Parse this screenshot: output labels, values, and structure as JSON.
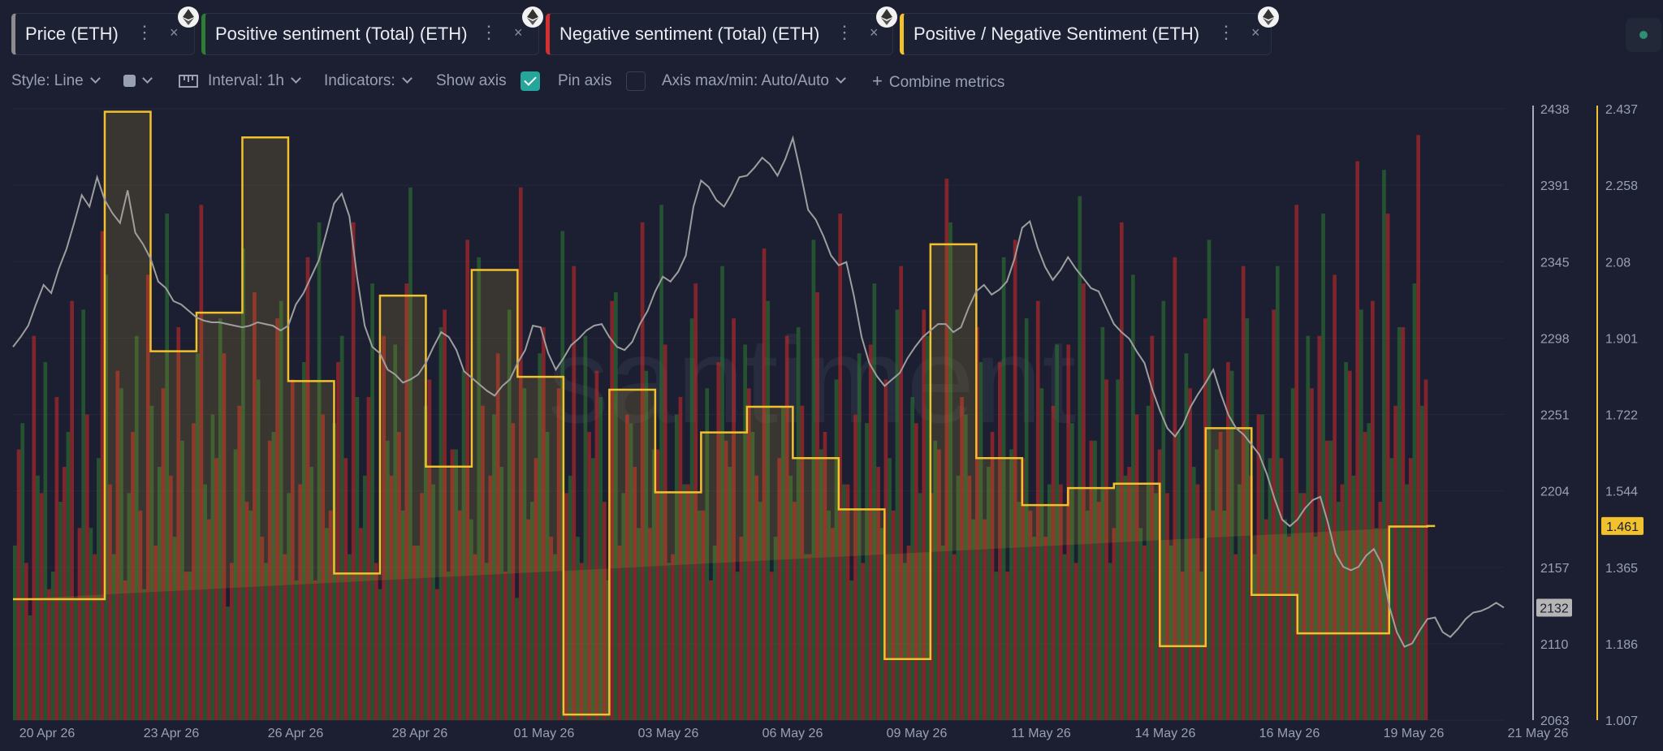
{
  "tabs": [
    {
      "label": "Price (ETH)",
      "color": "#8c8c8c"
    },
    {
      "label": "Positive sentiment (Total) (ETH)",
      "color": "#2e7d32"
    },
    {
      "label": "Negative sentiment (Total) (ETH)",
      "color": "#d32f2f"
    },
    {
      "label": "Positive / Negative Sentiment (ETH)",
      "color": "#f2c12e"
    }
  ],
  "toolbar": {
    "style": "Style: Line",
    "interval": "Interval: 1h",
    "indicators": "Indicators:",
    "show_axis": "Show axis",
    "pin_axis": "Pin axis",
    "axis_maxmin": "Axis max/min: Auto/Auto",
    "combine": "Combine metrics"
  },
  "watermark": "santiment",
  "chart_data": {
    "type": "line",
    "x_labels": [
      "20 Apr 26",
      "23 Apr 26",
      "26 Apr 26",
      "28 Apr 26",
      "01 May 26",
      "03 May 26",
      "06 May 26",
      "09 May 26",
      "11 May 26",
      "14 May 26",
      "16 May 26",
      "19 May 26",
      "21 May 26"
    ],
    "y_left_ticks": [
      "2438",
      "2391",
      "2345",
      "2298",
      "2251",
      "2204",
      "2157",
      "2110",
      "2063"
    ],
    "y_right_ticks": [
      "2.437",
      "2.258",
      "2.08",
      "1.901",
      "1.722",
      "1.544",
      "1.365",
      "1.186",
      "1.007"
    ],
    "price_current": "2132",
    "ratio_current": "1.461",
    "ylim_price": [
      2063,
      2438
    ],
    "ylim_ratio": [
      1.007,
      2.437
    ],
    "grid": true,
    "series": [
      {
        "name": "Price (ETH)",
        "color": "#9e9e9e",
        "values": [
          2292,
          2298,
          2305,
          2318,
          2330,
          2325,
          2340,
          2352,
          2368,
          2385,
          2378,
          2396,
          2382,
          2374,
          2368,
          2388,
          2362,
          2355,
          2346,
          2332,
          2328,
          2320,
          2318,
          2314,
          2310,
          2308,
          2307,
          2307,
          2306,
          2305,
          2304,
          2305,
          2307,
          2306,
          2305,
          2302,
          2305,
          2318,
          2325,
          2335,
          2345,
          2362,
          2380,
          2386,
          2372,
          2335,
          2305,
          2292,
          2288,
          2278,
          2275,
          2270,
          2272,
          2275,
          2282,
          2292,
          2301,
          2298,
          2290,
          2277,
          2273,
          2269,
          2265,
          2262,
          2268,
          2272,
          2282,
          2290,
          2305,
          2304,
          2288,
          2278,
          2285,
          2293,
          2297,
          2302,
          2305,
          2306,
          2298,
          2292,
          2290,
          2295,
          2306,
          2314,
          2326,
          2335,
          2332,
          2338,
          2348,
          2378,
          2394,
          2390,
          2382,
          2378,
          2386,
          2396,
          2397,
          2402,
          2408,
          2404,
          2397,
          2407,
          2420,
          2399,
          2376,
          2370,
          2360,
          2348,
          2342,
          2344,
          2323,
          2298,
          2282,
          2274,
          2268,
          2272,
          2276,
          2285,
          2292,
          2298,
          2302,
          2306,
          2306,
          2301,
          2304,
          2316,
          2326,
          2330,
          2324,
          2327,
          2332,
          2346,
          2365,
          2369,
          2353,
          2341,
          2333,
          2339,
          2347,
          2340,
          2334,
          2328,
          2326,
          2316,
          2306,
          2301,
          2297,
          2289,
          2282,
          2266,
          2253,
          2242,
          2237,
          2244,
          2255,
          2263,
          2270,
          2278,
          2263,
          2250,
          2242,
          2238,
          2232,
          2226,
          2214,
          2199,
          2186,
          2182,
          2186,
          2193,
          2198,
          2200,
          2184,
          2165,
          2157,
          2155,
          2157,
          2164,
          2168,
          2159,
          2133,
          2117,
          2108,
          2110,
          2118,
          2125,
          2126,
          2117,
          2114,
          2119,
          2125,
          2129,
          2130,
          2132,
          2135,
          2132
        ]
      },
      {
        "name": "Positive / Negative Sentiment (ETH)",
        "color": "#f2c12e",
        "values": [
          1.29,
          1.29,
          1.29,
          1.29,
          1.29,
          1.29,
          1.29,
          1.29,
          1.29,
          1.29,
          1.29,
          1.29,
          2.43,
          2.43,
          2.43,
          2.43,
          2.43,
          2.43,
          1.87,
          1.87,
          1.87,
          1.87,
          1.87,
          1.87,
          1.96,
          1.96,
          1.96,
          1.96,
          1.96,
          1.96,
          2.37,
          2.37,
          2.37,
          2.37,
          2.37,
          2.37,
          1.8,
          1.8,
          1.8,
          1.8,
          1.8,
          1.8,
          1.35,
          1.35,
          1.35,
          1.35,
          1.35,
          1.35,
          2.0,
          2.0,
          2.0,
          2.0,
          2.0,
          2.0,
          1.6,
          1.6,
          1.6,
          1.6,
          1.6,
          1.6,
          2.06,
          2.06,
          2.06,
          2.06,
          2.06,
          2.06,
          1.81,
          1.81,
          1.81,
          1.81,
          1.81,
          1.81,
          1.02,
          1.02,
          1.02,
          1.02,
          1.02,
          1.02,
          1.78,
          1.78,
          1.78,
          1.78,
          1.78,
          1.78,
          1.54,
          1.54,
          1.54,
          1.54,
          1.54,
          1.54,
          1.68,
          1.68,
          1.68,
          1.68,
          1.68,
          1.68,
          1.74,
          1.74,
          1.74,
          1.74,
          1.74,
          1.74,
          1.62,
          1.62,
          1.62,
          1.62,
          1.62,
          1.62,
          1.5,
          1.5,
          1.5,
          1.5,
          1.5,
          1.5,
          1.15,
          1.15,
          1.15,
          1.15,
          1.15,
          1.15,
          2.12,
          2.12,
          2.12,
          2.12,
          2.12,
          2.12,
          1.62,
          1.62,
          1.62,
          1.62,
          1.62,
          1.62,
          1.51,
          1.51,
          1.51,
          1.51,
          1.51,
          1.51,
          1.55,
          1.55,
          1.55,
          1.55,
          1.55,
          1.55,
          1.56,
          1.56,
          1.56,
          1.56,
          1.56,
          1.56,
          1.18,
          1.18,
          1.18,
          1.18,
          1.18,
          1.18,
          1.69,
          1.69,
          1.69,
          1.69,
          1.69,
          1.69,
          1.3,
          1.3,
          1.3,
          1.3,
          1.3,
          1.3,
          1.21,
          1.21,
          1.21,
          1.21,
          1.21,
          1.21,
          1.21,
          1.21,
          1.21,
          1.21,
          1.21,
          1.21,
          1.46,
          1.46,
          1.46,
          1.46,
          1.46,
          1.461
        ]
      },
      {
        "name": "Positive sentiment (Total) (ETH)",
        "color": "#2e7d32",
        "values": [
          20,
          34,
          12,
          28,
          41,
          17,
          25,
          33,
          14,
          47,
          22,
          30,
          51,
          19,
          38,
          26,
          44,
          15,
          36,
          29,
          58,
          21,
          32,
          17,
          42,
          27,
          35,
          46,
          13,
          31,
          54,
          24,
          39,
          18,
          33,
          48,
          26,
          16,
          41,
          29,
          57,
          22,
          34,
          44,
          19,
          37,
          28,
          50,
          15,
          32,
          43,
          24,
          61,
          20,
          36,
          27,
          45,
          17,
          31,
          40,
          23,
          53,
          18,
          35,
          29,
          47,
          14,
          38,
          25,
          42,
          33,
          19,
          56,
          28,
          21,
          44,
          30,
          37,
          16,
          49,
          26,
          34,
          22,
          40,
          31,
          59,
          18,
          35,
          27,
          46,
          24,
          38,
          20,
          52,
          29,
          17,
          43,
          33,
          25,
          48,
          21,
          36,
          28,
          45,
          19,
          55,
          31,
          24,
          39,
          27,
          16,
          42,
          34,
          50,
          22,
          30,
          47,
          18,
          37,
          26,
          44,
          32,
          20,
          57,
          28,
          35,
          23,
          41,
          29,
          17,
          53,
          31,
          25,
          46,
          21,
          38,
          27,
          43,
          19,
          34,
          60,
          24,
          32,
          45,
          18,
          39,
          28,
          51,
          22,
          36,
          26,
          48,
          20,
          33,
          42,
          29,
          17,
          55,
          31,
          24,
          40,
          27,
          46,
          19,
          35,
          30,
          52,
          23,
          38,
          26,
          44,
          21,
          58,
          32,
          25,
          41,
          28,
          47,
          34,
          22,
          63,
          30,
          45,
          27,
          50,
          36
        ]
      },
      {
        "name": "Negative sentiment (Total) (ETH)",
        "color": "#d32f2f",
        "values": [
          31,
          18,
          44,
          26,
          15,
          37,
          29,
          48,
          22,
          35,
          19,
          56,
          27,
          40,
          16,
          33,
          24,
          51,
          20,
          38,
          28,
          45,
          17,
          34,
          59,
          23,
          30,
          42,
          18,
          36,
          25,
          49,
          21,
          32,
          46,
          19,
          39,
          27,
          53,
          16,
          35,
          24,
          41,
          30,
          57,
          22,
          37,
          18,
          44,
          28,
          33,
          50,
          20,
          26,
          39,
          15,
          47,
          31,
          24,
          55,
          19,
          36,
          28,
          42,
          17,
          34,
          61,
          23,
          30,
          45,
          21,
          38,
          26,
          52,
          18,
          33,
          40,
          25,
          48,
          20,
          35,
          29,
          57,
          22,
          31,
          43,
          19,
          37,
          27,
          50,
          24,
          16,
          41,
          32,
          46,
          21,
          38,
          28,
          54,
          17,
          30,
          44,
          25,
          36,
          19,
          49,
          33,
          22,
          58,
          27,
          35,
          18,
          43,
          29,
          39,
          24,
          52,
          20,
          34,
          47,
          26,
          31,
          62,
          19,
          37,
          28,
          45,
          23,
          33,
          41,
          17,
          55,
          30,
          24,
          48,
          21,
          36,
          27,
          43,
          18,
          50,
          32,
          25,
          39,
          22,
          57,
          29,
          35,
          20,
          44,
          31,
          26,
          53,
          17,
          38,
          27,
          46,
          24,
          33,
          41,
          19,
          52,
          28,
          35,
          23,
          47,
          30,
          21,
          59,
          26,
          38,
          44,
          32,
          51,
          27,
          40,
          64,
          33,
          48,
          25,
          58,
          36,
          45,
          30,
          67,
          39
        ]
      }
    ]
  }
}
